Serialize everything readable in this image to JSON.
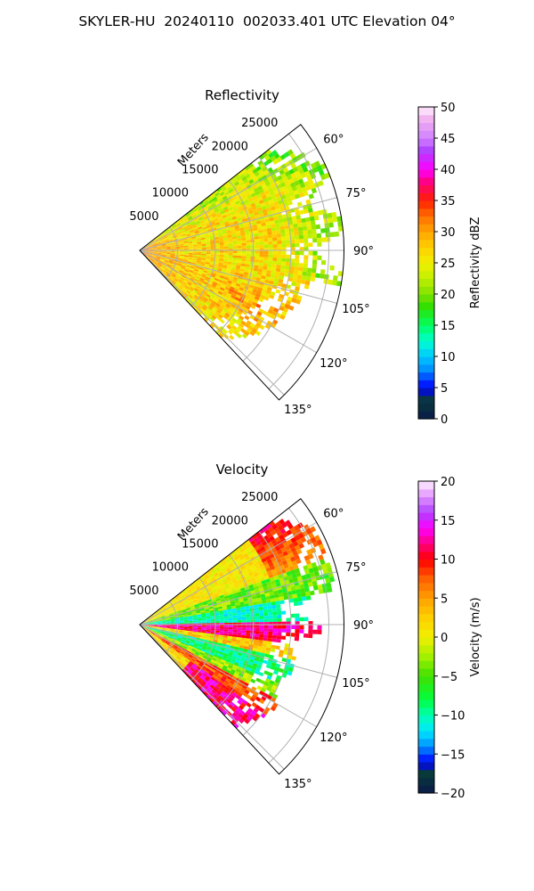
{
  "title": "SKYLER-HU  20240110  002033.401 UTC Elevation 04°",
  "chart_data": [
    {
      "type": "heatmap",
      "title": "Reflectivity",
      "projection": "polar sector (PPI)",
      "radial_axis_label": "Meters",
      "radial_ticks": [
        5000,
        10000,
        15000,
        20000,
        25000
      ],
      "radial_max_m": 27000,
      "azimuth_range_deg": [
        52,
        137
      ],
      "azimuth_ticks_deg": [
        60,
        75,
        90,
        105,
        120,
        135
      ],
      "azimuth_tick_labels": [
        "60°",
        "75°",
        "90°",
        "105°",
        "120°",
        "135°"
      ],
      "grid": true,
      "colorbar": {
        "label": "Reflectivity dBZ",
        "range": [
          0,
          50
        ],
        "ticks": [
          0,
          5,
          10,
          15,
          20,
          25,
          30,
          35,
          40,
          45,
          50
        ],
        "tick_labels": [
          "0",
          "5",
          "10",
          "15",
          "20",
          "25",
          "30",
          "35",
          "40",
          "45",
          "50"
        ],
        "stops": [
          {
            "value": 0,
            "color": "#0a1a4a"
          },
          {
            "value": 3,
            "color": "#083a3a"
          },
          {
            "value": 5,
            "color": "#0000ff"
          },
          {
            "value": 8,
            "color": "#0090ff"
          },
          {
            "value": 10,
            "color": "#00c8ff"
          },
          {
            "value": 12.5,
            "color": "#00ffd0"
          },
          {
            "value": 15,
            "color": "#00ff60"
          },
          {
            "value": 18,
            "color": "#2ee000"
          },
          {
            "value": 20,
            "color": "#7ee000"
          },
          {
            "value": 22.5,
            "color": "#c0f000"
          },
          {
            "value": 25,
            "color": "#f0f000"
          },
          {
            "value": 27.5,
            "color": "#ffd000"
          },
          {
            "value": 30,
            "color": "#ffa500"
          },
          {
            "value": 32.5,
            "color": "#ff7000"
          },
          {
            "value": 35,
            "color": "#ff2000"
          },
          {
            "value": 38,
            "color": "#ff0080"
          },
          {
            "value": 40,
            "color": "#ff00ff"
          },
          {
            "value": 43,
            "color": "#b040ff"
          },
          {
            "value": 45,
            "color": "#d080ff"
          },
          {
            "value": 48,
            "color": "#f0b0f0"
          },
          {
            "value": 50,
            "color": "#fff0ff"
          }
        ]
      },
      "field_summary": "mostly 20–32 dBZ across the sector, 32–38 dBZ near the radar and along a band toward 115°, scattered echoes to ~27 km"
    },
    {
      "type": "heatmap",
      "title": "Velocity",
      "projection": "polar sector (PPI)",
      "radial_axis_label": "Meters",
      "radial_ticks": [
        5000,
        10000,
        15000,
        20000,
        25000
      ],
      "radial_max_m": 27000,
      "azimuth_range_deg": [
        52,
        137
      ],
      "azimuth_ticks_deg": [
        60,
        75,
        90,
        105,
        120,
        135
      ],
      "azimuth_tick_labels": [
        "60°",
        "75°",
        "90°",
        "105°",
        "120°",
        "135°"
      ],
      "grid": true,
      "colorbar": {
        "label": "Velocity (m/s)",
        "range": [
          -20,
          20
        ],
        "ticks": [
          -20,
          -15,
          -10,
          -5,
          0,
          5,
          10,
          15,
          20
        ],
        "tick_labels": [
          "−20",
          "−15",
          "−10",
          "−5",
          "0",
          "5",
          "10",
          "15",
          "20"
        ],
        "stops": [
          {
            "value": -20,
            "color": "#0a1a4a"
          },
          {
            "value": -17.5,
            "color": "#083a3a"
          },
          {
            "value": -16,
            "color": "#0000ff"
          },
          {
            "value": -14,
            "color": "#0090ff"
          },
          {
            "value": -12,
            "color": "#00e8ff"
          },
          {
            "value": -10,
            "color": "#00ffb0"
          },
          {
            "value": -8,
            "color": "#00ff40"
          },
          {
            "value": -5,
            "color": "#40e000"
          },
          {
            "value": -2.5,
            "color": "#a0f000"
          },
          {
            "value": 0,
            "color": "#f0f000"
          },
          {
            "value": 2.5,
            "color": "#ffd000"
          },
          {
            "value": 5,
            "color": "#ffa000"
          },
          {
            "value": 7.5,
            "color": "#ff6000"
          },
          {
            "value": 10,
            "color": "#ff0000"
          },
          {
            "value": 12,
            "color": "#ff0080"
          },
          {
            "value": 14,
            "color": "#ff00ff"
          },
          {
            "value": 16,
            "color": "#b040ff"
          },
          {
            "value": 18,
            "color": "#e090ff"
          },
          {
            "value": 20,
            "color": "#fff0ff"
          }
        ]
      },
      "field_summary": "banded radial velocities: near 0 at 55–70°, −12 to −5 m/s near 80–88°, +10 to +16 m/s near 90–96°, −10 m/s around 105–112°, +8 to +16 m/s near 118–135°"
    }
  ]
}
